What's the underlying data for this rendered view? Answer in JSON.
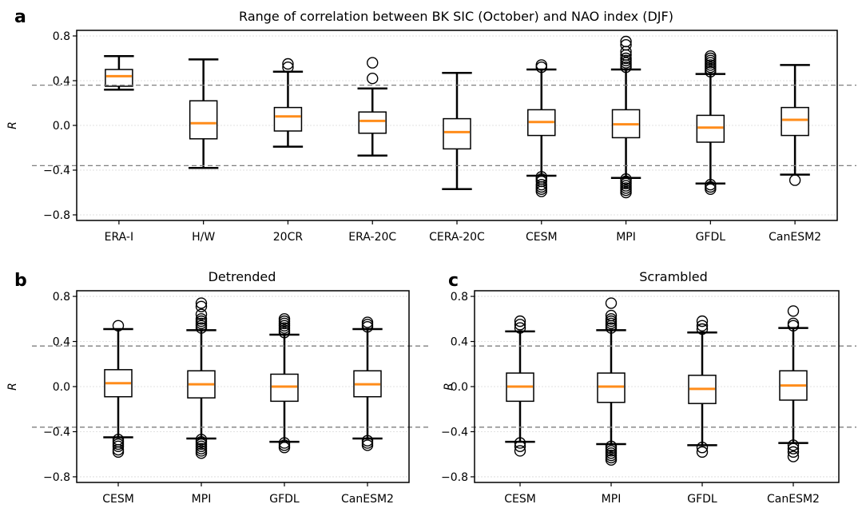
{
  "colors": {
    "median": "#ff8c1a",
    "box": "#000000",
    "threshold": "#7f7f7f",
    "grid": "#d9d9d9"
  },
  "chart_data": [
    {
      "id": "a",
      "panel_letter": "a",
      "type": "box",
      "title": "Range of correlation between BK SIC (October) and NAO index (DJF)",
      "ylabel": "R",
      "ylim": [
        -0.85,
        0.85
      ],
      "yticks": [
        -0.8,
        -0.4,
        0.0,
        0.4,
        0.8
      ],
      "ytick_labels": [
        "−0.8",
        "−0.4",
        "0.0",
        "0.4",
        "0.8"
      ],
      "threshold_lines": [
        0.36,
        -0.36
      ],
      "grid": true,
      "categories": [
        "ERA-I",
        "H/W",
        "20CR",
        "ERA-20C",
        "CERA-20C",
        "CESM",
        "MPI",
        "GFDL",
        "CanESM2"
      ],
      "boxes": [
        {
          "whislo": 0.32,
          "q1": 0.35,
          "med": 0.44,
          "q3": 0.5,
          "whishi": 0.62,
          "fliers": []
        },
        {
          "whislo": -0.38,
          "q1": -0.12,
          "med": 0.02,
          "q3": 0.22,
          "whishi": 0.59,
          "fliers": []
        },
        {
          "whislo": -0.19,
          "q1": -0.05,
          "med": 0.08,
          "q3": 0.16,
          "whishi": 0.48,
          "fliers": [
            0.52,
            0.55
          ]
        },
        {
          "whislo": -0.27,
          "q1": -0.07,
          "med": 0.04,
          "q3": 0.12,
          "whishi": 0.33,
          "fliers": [
            0.42,
            0.56
          ]
        },
        {
          "whislo": -0.57,
          "q1": -0.21,
          "med": -0.06,
          "q3": 0.06,
          "whishi": 0.47,
          "fliers": []
        },
        {
          "whislo": -0.45,
          "q1": -0.09,
          "med": 0.03,
          "q3": 0.14,
          "whishi": 0.5,
          "fliers": [
            0.52,
            0.54,
            -0.46,
            -0.48,
            -0.5,
            -0.53,
            -0.55,
            -0.57,
            -0.59
          ]
        },
        {
          "whislo": -0.47,
          "q1": -0.11,
          "med": 0.01,
          "q3": 0.14,
          "whishi": 0.5,
          "fliers": [
            0.52,
            0.54,
            0.56,
            0.58,
            0.6,
            0.63,
            0.66,
            0.72,
            0.75,
            -0.48,
            -0.5,
            -0.52,
            -0.54,
            -0.56,
            -0.58,
            -0.6
          ]
        },
        {
          "whislo": -0.52,
          "q1": -0.15,
          "med": -0.02,
          "q3": 0.09,
          "whishi": 0.46,
          "fliers": [
            0.48,
            0.5,
            0.52,
            0.54,
            0.56,
            0.58,
            0.6,
            0.62,
            -0.53,
            -0.55,
            -0.57
          ]
        },
        {
          "whislo": -0.44,
          "q1": -0.09,
          "med": 0.05,
          "q3": 0.16,
          "whishi": 0.54,
          "fliers": [
            -0.49
          ]
        }
      ]
    },
    {
      "id": "b",
      "panel_letter": "b",
      "type": "box",
      "title": "Detrended",
      "ylabel": "R",
      "ylim": [
        -0.85,
        0.85
      ],
      "yticks": [
        -0.8,
        -0.4,
        0.0,
        0.4,
        0.8
      ],
      "ytick_labels": [
        "−0.8",
        "−0.4",
        "0.0",
        "0.4",
        "0.8"
      ],
      "threshold_lines": [
        0.36,
        -0.36
      ],
      "grid": true,
      "categories": [
        "CESM",
        "MPI",
        "GFDL",
        "CanESM2"
      ],
      "boxes": [
        {
          "whislo": -0.45,
          "q1": -0.09,
          "med": 0.03,
          "q3": 0.15,
          "whishi": 0.51,
          "fliers": [
            0.54,
            -0.47,
            -0.49,
            -0.51,
            -0.53,
            -0.56,
            -0.58
          ]
        },
        {
          "whislo": -0.46,
          "q1": -0.1,
          "med": 0.02,
          "q3": 0.14,
          "whishi": 0.5,
          "fliers": [
            0.52,
            0.54,
            0.56,
            0.58,
            0.6,
            0.64,
            0.71,
            0.74,
            -0.47,
            -0.49,
            -0.51,
            -0.53,
            -0.55,
            -0.57,
            -0.59
          ]
        },
        {
          "whislo": -0.49,
          "q1": -0.13,
          "med": 0.0,
          "q3": 0.11,
          "whishi": 0.46,
          "fliers": [
            0.48,
            0.5,
            0.52,
            0.54,
            0.56,
            0.58,
            0.6,
            -0.5,
            -0.52,
            -0.54
          ]
        },
        {
          "whislo": -0.46,
          "q1": -0.09,
          "med": 0.02,
          "q3": 0.14,
          "whishi": 0.51,
          "fliers": [
            0.53,
            0.55,
            0.57,
            -0.48,
            -0.5,
            -0.52
          ]
        }
      ]
    },
    {
      "id": "c",
      "panel_letter": "c",
      "type": "box",
      "title": "Scrambled",
      "ylabel": "R",
      "ylim": [
        -0.85,
        0.85
      ],
      "yticks": [
        -0.8,
        -0.4,
        0.0,
        0.4,
        0.8
      ],
      "ytick_labels": [
        "−0.8",
        "−0.4",
        "0.0",
        "0.4",
        "0.8"
      ],
      "threshold_lines": [
        0.36,
        -0.36
      ],
      "grid": true,
      "categories": [
        "CESM",
        "MPI",
        "GFDL",
        "CanESM2"
      ],
      "boxes": [
        {
          "whislo": -0.49,
          "q1": -0.13,
          "med": 0.0,
          "q3": 0.12,
          "whishi": 0.49,
          "fliers": [
            0.52,
            0.55,
            0.58,
            -0.5,
            -0.53,
            -0.57
          ]
        },
        {
          "whislo": -0.51,
          "q1": -0.14,
          "med": 0.0,
          "q3": 0.12,
          "whishi": 0.5,
          "fliers": [
            0.52,
            0.54,
            0.56,
            0.58,
            0.6,
            0.63,
            0.74,
            -0.53,
            -0.55,
            -0.57,
            -0.59,
            -0.61,
            -0.63,
            -0.65
          ]
        },
        {
          "whislo": -0.52,
          "q1": -0.15,
          "med": -0.02,
          "q3": 0.1,
          "whishi": 0.48,
          "fliers": [
            0.51,
            0.54,
            0.58,
            -0.54,
            -0.58
          ]
        },
        {
          "whislo": -0.5,
          "q1": -0.12,
          "med": 0.01,
          "q3": 0.14,
          "whishi": 0.52,
          "fliers": [
            0.54,
            0.56,
            0.67,
            -0.52,
            -0.55,
            -0.58,
            -0.62
          ]
        }
      ]
    }
  ]
}
